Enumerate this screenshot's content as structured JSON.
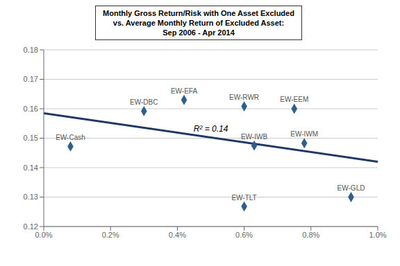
{
  "chart_data": {
    "type": "scatter",
    "title": "Monthly Gross Return/Risk with One Asset Excluded\nvs. Average Monthly Return of Excluded Asset:\nSep 2006 - Apr 2014",
    "labels": [
      "EW-Cash",
      "EW-DBC",
      "EW-EFA",
      "EW-RWR",
      "EW-EEM",
      "EW-IWB",
      "EW-IWM",
      "EW-TLT",
      "EW-GLD"
    ],
    "x": [
      0.0008,
      0.003,
      0.0042,
      0.006,
      0.0075,
      0.0063,
      0.0078,
      0.006,
      0.0092
    ],
    "values": [
      0.1472,
      0.1592,
      0.163,
      0.1608,
      0.16,
      0.1475,
      0.1483,
      0.1268,
      0.13
    ],
    "color": "#2E5F8A",
    "marker": "diamond",
    "trendline": {
      "type": "line",
      "x": [
        0.0,
        0.01
      ],
      "values": [
        0.1585,
        0.142
      ],
      "color": "#1F3864"
    },
    "annotations": [
      "R² = 0.14"
    ],
    "xlim": [
      0.0,
      0.01
    ],
    "ylim": [
      0.12,
      0.18
    ],
    "xticks": [
      {
        "value": 0.0,
        "label": "0.0%"
      },
      {
        "value": 0.002,
        "label": "0.2%"
      },
      {
        "value": 0.004,
        "label": "0.4%"
      },
      {
        "value": 0.006,
        "label": "0.6%"
      },
      {
        "value": 0.008,
        "label": "0.8%"
      },
      {
        "value": 0.01,
        "label": "1.0%"
      }
    ],
    "yticks": [
      0.12,
      0.13,
      0.14,
      0.15,
      0.16,
      0.17,
      0.18
    ],
    "grid": true
  }
}
